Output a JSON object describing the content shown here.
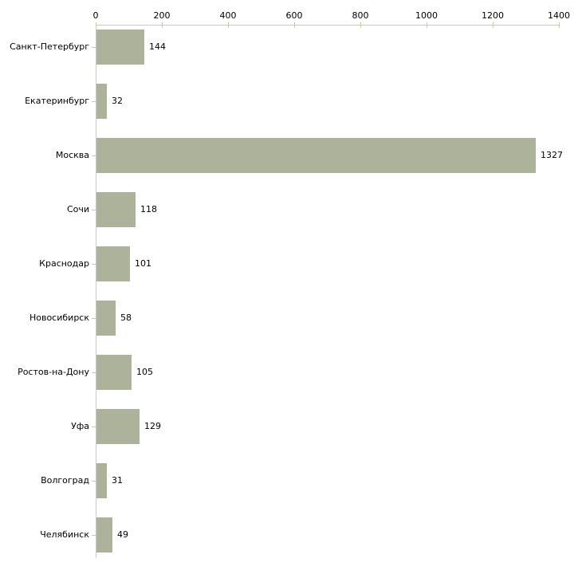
{
  "chart_data": {
    "type": "bar",
    "orientation": "horizontal",
    "title": "",
    "xlabel": "",
    "ylabel": "",
    "categories": [
      "Санкт-Петербург",
      "Екатеринбург",
      "Москва",
      "Сочи",
      "Краснодар",
      "Новосибирск",
      "Ростов-на-Дону",
      "Уфа",
      "Волгоград",
      "Челябинск"
    ],
    "values": [
      144,
      32,
      1327,
      118,
      101,
      58,
      105,
      129,
      31,
      49
    ],
    "xlim": [
      0,
      1400
    ],
    "x_ticks": [
      0,
      200,
      400,
      600,
      800,
      1000,
      1200,
      1400
    ],
    "x_axis_position": "top",
    "grid": false,
    "legend": false,
    "bar_color": "#acb39a",
    "axis_line_color": "#c9c9c9",
    "tick_color": "#cccc99",
    "text_color": "#000000",
    "background_color": "#ffffff"
  }
}
